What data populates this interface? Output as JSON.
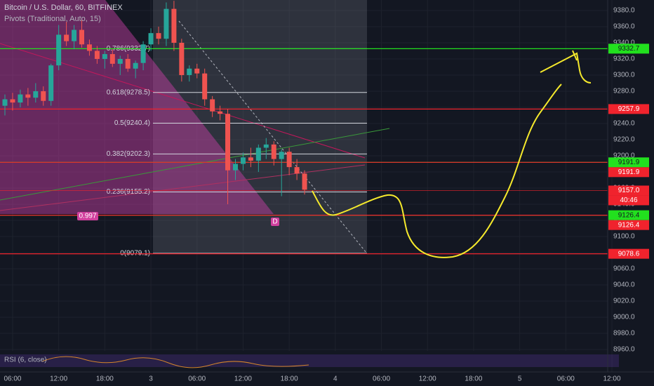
{
  "chart_data": {
    "type": "candlestick",
    "title": "Bitcoin / U.S. Dollar, 60, BITFINEX",
    "indicator": "Pivots (Traditional, Auto, 15)",
    "rsi_label": "RSI (6, close)",
    "countdown": "40:46",
    "up_color": "#26a69a",
    "down_color": "#ef5350",
    "grid": true,
    "x": [
      5,
      6,
      7,
      8,
      9,
      10,
      11,
      12,
      13,
      14,
      15,
      16,
      17,
      18,
      19,
      20,
      21,
      22,
      23,
      24,
      25,
      26,
      27,
      28,
      29,
      30,
      31,
      32,
      33,
      34,
      35,
      36,
      37,
      38,
      39,
      40,
      41,
      42,
      43,
      44
    ],
    "open": [
      9262,
      9270,
      9266,
      9276,
      9272,
      9280,
      9268,
      9312,
      9350,
      9342,
      9356,
      9338,
      9330,
      9320,
      9326,
      9314,
      9320,
      9308,
      9315,
      9338,
      9352,
      9345,
      9382,
      9340,
      9300,
      9308,
      9302,
      9270,
      9255,
      9252,
      9182,
      9190,
      9198,
      9194,
      9210,
      9214,
      9196,
      9205,
      9186,
      9178
    ],
    "high": [
      9276,
      9278,
      9282,
      9284,
      9290,
      9286,
      9314,
      9362,
      9366,
      9362,
      9368,
      9344,
      9336,
      9330,
      9332,
      9324,
      9326,
      9318,
      9342,
      9358,
      9360,
      9390,
      9392,
      9345,
      9312,
      9314,
      9308,
      9274,
      9262,
      9258,
      9196,
      9204,
      9210,
      9214,
      9222,
      9218,
      9208,
      9210,
      9196,
      9182
    ],
    "low": [
      9250,
      9256,
      9260,
      9262,
      9266,
      9262,
      9262,
      9306,
      9336,
      9332,
      9334,
      9324,
      9314,
      9308,
      9310,
      9300,
      9304,
      9296,
      9306,
      9330,
      9338,
      9336,
      9330,
      9292,
      9292,
      9296,
      9262,
      9248,
      9244,
      9140,
      9170,
      9182,
      9186,
      9180,
      9196,
      9188,
      9150,
      9176,
      9170,
      9152
    ],
    "close": [
      9270,
      9266,
      9276,
      9272,
      9280,
      9268,
      9312,
      9350,
      9342,
      9356,
      9338,
      9330,
      9320,
      9326,
      9314,
      9320,
      9308,
      9315,
      9338,
      9352,
      9345,
      9382,
      9340,
      9300,
      9308,
      9302,
      9270,
      9255,
      9252,
      9182,
      9190,
      9198,
      9194,
      9210,
      9214,
      9196,
      9205,
      9186,
      9178,
      9158
    ],
    "xlim": [
      4.36,
      83.45
    ],
    "ylim": [
      8958.3,
      9393.0
    ],
    "xticks": [
      {
        "value": 6,
        "label": "06:00"
      },
      {
        "value": 12,
        "label": "12:00"
      },
      {
        "value": 18,
        "label": "18:00"
      },
      {
        "value": 24,
        "label": "3"
      },
      {
        "value": 30,
        "label": "06:00"
      },
      {
        "value": 36,
        "label": "12:00"
      },
      {
        "value": 42,
        "label": "18:00"
      },
      {
        "value": 48,
        "label": "4"
      },
      {
        "value": 54,
        "label": "06:00"
      },
      {
        "value": 60,
        "label": "12:00"
      },
      {
        "value": 66,
        "label": "18:00"
      },
      {
        "value": 72,
        "label": "5"
      },
      {
        "value": 78,
        "label": "06:00"
      },
      {
        "value": 84,
        "label": "12:00"
      }
    ],
    "yticks": [
      {
        "value": 9380,
        "label": "9380.0"
      },
      {
        "value": 9360,
        "label": "9360.0"
      },
      {
        "value": 9340,
        "label": "9340.0"
      },
      {
        "value": 9320,
        "label": "9320.0"
      },
      {
        "value": 9300,
        "label": "9300.0"
      },
      {
        "value": 9280,
        "label": "9280.0"
      },
      {
        "value": 9260,
        "label": "9260.0"
      },
      {
        "value": 9240,
        "label": "9240.0"
      },
      {
        "value": 9220,
        "label": "9220.0"
      },
      {
        "value": 9200,
        "label": "9200.0"
      },
      {
        "value": 9180,
        "label": "9180.0"
      },
      {
        "value": 9160,
        "label": "9160.0"
      },
      {
        "value": 9140,
        "label": "9140.0"
      },
      {
        "value": 9120,
        "label": "9120.0"
      },
      {
        "value": 9100,
        "label": "9100.0"
      },
      {
        "value": 9080,
        "label": "9080.0"
      },
      {
        "value": 9060,
        "label": "9060.0"
      },
      {
        "value": 9040,
        "label": "9040.0"
      },
      {
        "value": 9020,
        "label": "9020.0"
      },
      {
        "value": 9000,
        "label": "9000.0"
      },
      {
        "value": 8980,
        "label": "8980.0"
      },
      {
        "value": 8960,
        "label": "8960.0"
      }
    ],
    "fib_levels": [
      {
        "value": 9332.7,
        "label": "0.786(9332.7)"
      },
      {
        "value": 9278.5,
        "label": "0.618(9278.5)"
      },
      {
        "value": 9240.4,
        "label": "0.5(9240.4)"
      },
      {
        "value": 9202.3,
        "label": "0.382(9202.3)"
      },
      {
        "value": 9155.2,
        "label": "0.236(9155.2)"
      },
      {
        "value": 9079.1,
        "label": "0(9079.1)"
      }
    ],
    "price_tags": [
      {
        "value": 9332.7,
        "label": "9332.7",
        "color": "#22e01e"
      },
      {
        "value": 9257.9,
        "label": "9257.9",
        "color": "#f0232d"
      },
      {
        "value": 9191.9,
        "label": "9191.9",
        "color": "#22e01e"
      },
      {
        "value": 9191.9,
        "label": "9191.9",
        "color": "#f0232d"
      },
      {
        "value": 9157.0,
        "label": "9157.0",
        "color": "#f0232d"
      },
      {
        "value": 9126.4,
        "label": "9126.4",
        "color": "#22e01e"
      },
      {
        "value": 9126.4,
        "label": "9126.4",
        "color": "#f0232d"
      },
      {
        "value": 9078.6,
        "label": "9078.6",
        "color": "#f0232d"
      }
    ],
    "pattern_label": "0.997",
    "point_label": "D"
  }
}
